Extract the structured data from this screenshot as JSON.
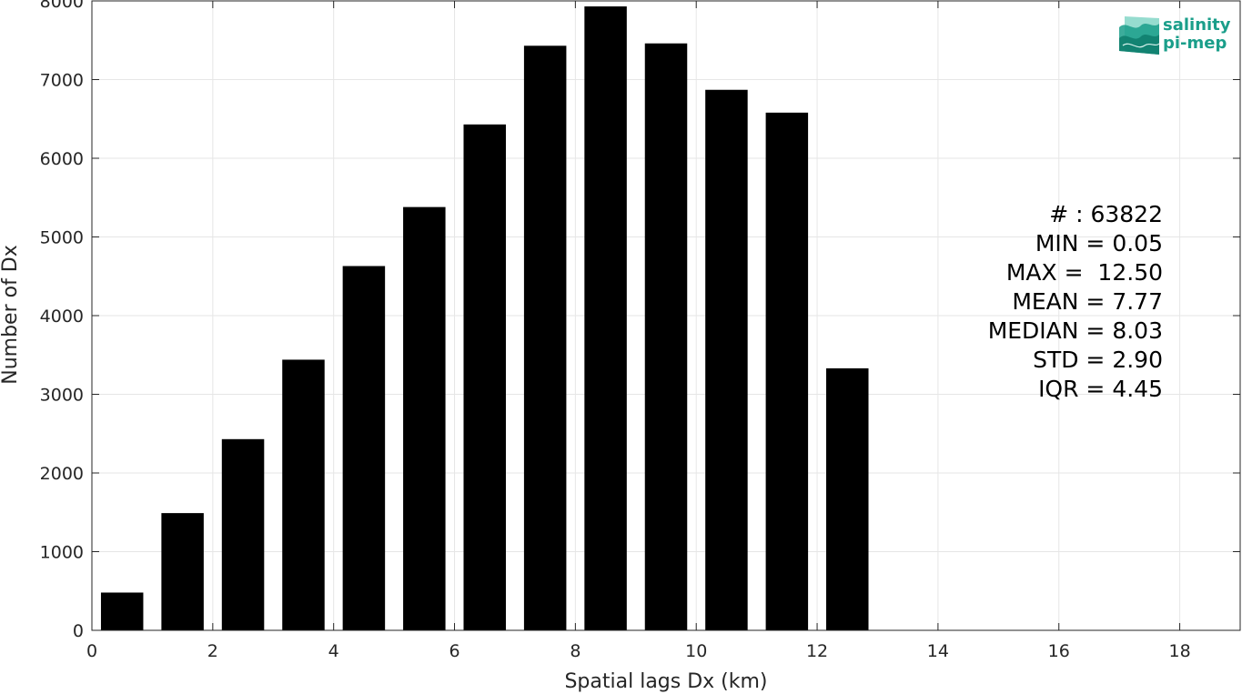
{
  "chart_data": {
    "type": "bar",
    "xlabel": "Spatial lags Dx (km)",
    "ylabel": "Number of Dx",
    "xlim": [
      0,
      19
    ],
    "ylim": [
      0,
      8000
    ],
    "x_ticks": [
      0,
      2,
      4,
      6,
      8,
      10,
      12,
      14,
      16,
      18
    ],
    "y_ticks": [
      0,
      1000,
      2000,
      3000,
      4000,
      5000,
      6000,
      7000,
      8000
    ],
    "grid": true,
    "bar_color": "#000000",
    "bins": [
      {
        "x0": 0.15,
        "x1": 0.85,
        "value": 480
      },
      {
        "x0": 1.15,
        "x1": 1.85,
        "value": 1490
      },
      {
        "x0": 2.15,
        "x1": 2.85,
        "value": 2430
      },
      {
        "x0": 3.15,
        "x1": 3.85,
        "value": 3440
      },
      {
        "x0": 4.15,
        "x1": 4.85,
        "value": 4630
      },
      {
        "x0": 5.15,
        "x1": 5.85,
        "value": 5380
      },
      {
        "x0": 6.15,
        "x1": 6.85,
        "value": 6430
      },
      {
        "x0": 7.15,
        "x1": 7.85,
        "value": 7430
      },
      {
        "x0": 8.15,
        "x1": 8.85,
        "value": 7930
      },
      {
        "x0": 9.15,
        "x1": 9.85,
        "value": 7460
      },
      {
        "x0": 10.15,
        "x1": 10.85,
        "value": 6870
      },
      {
        "x0": 11.15,
        "x1": 11.85,
        "value": 6580
      },
      {
        "x0": 12.15,
        "x1": 12.85,
        "value": 3330
      }
    ],
    "stats": [
      "# : 63822",
      "MIN = 0.05",
      "MAX =  12.50",
      "MEAN = 7.77",
      "MEDIAN = 8.03",
      "STD = 2.90",
      "IQR = 4.45"
    ]
  },
  "logo": {
    "line1": "salinity",
    "line2": "pi-mep",
    "color": "#1a9e8a"
  }
}
